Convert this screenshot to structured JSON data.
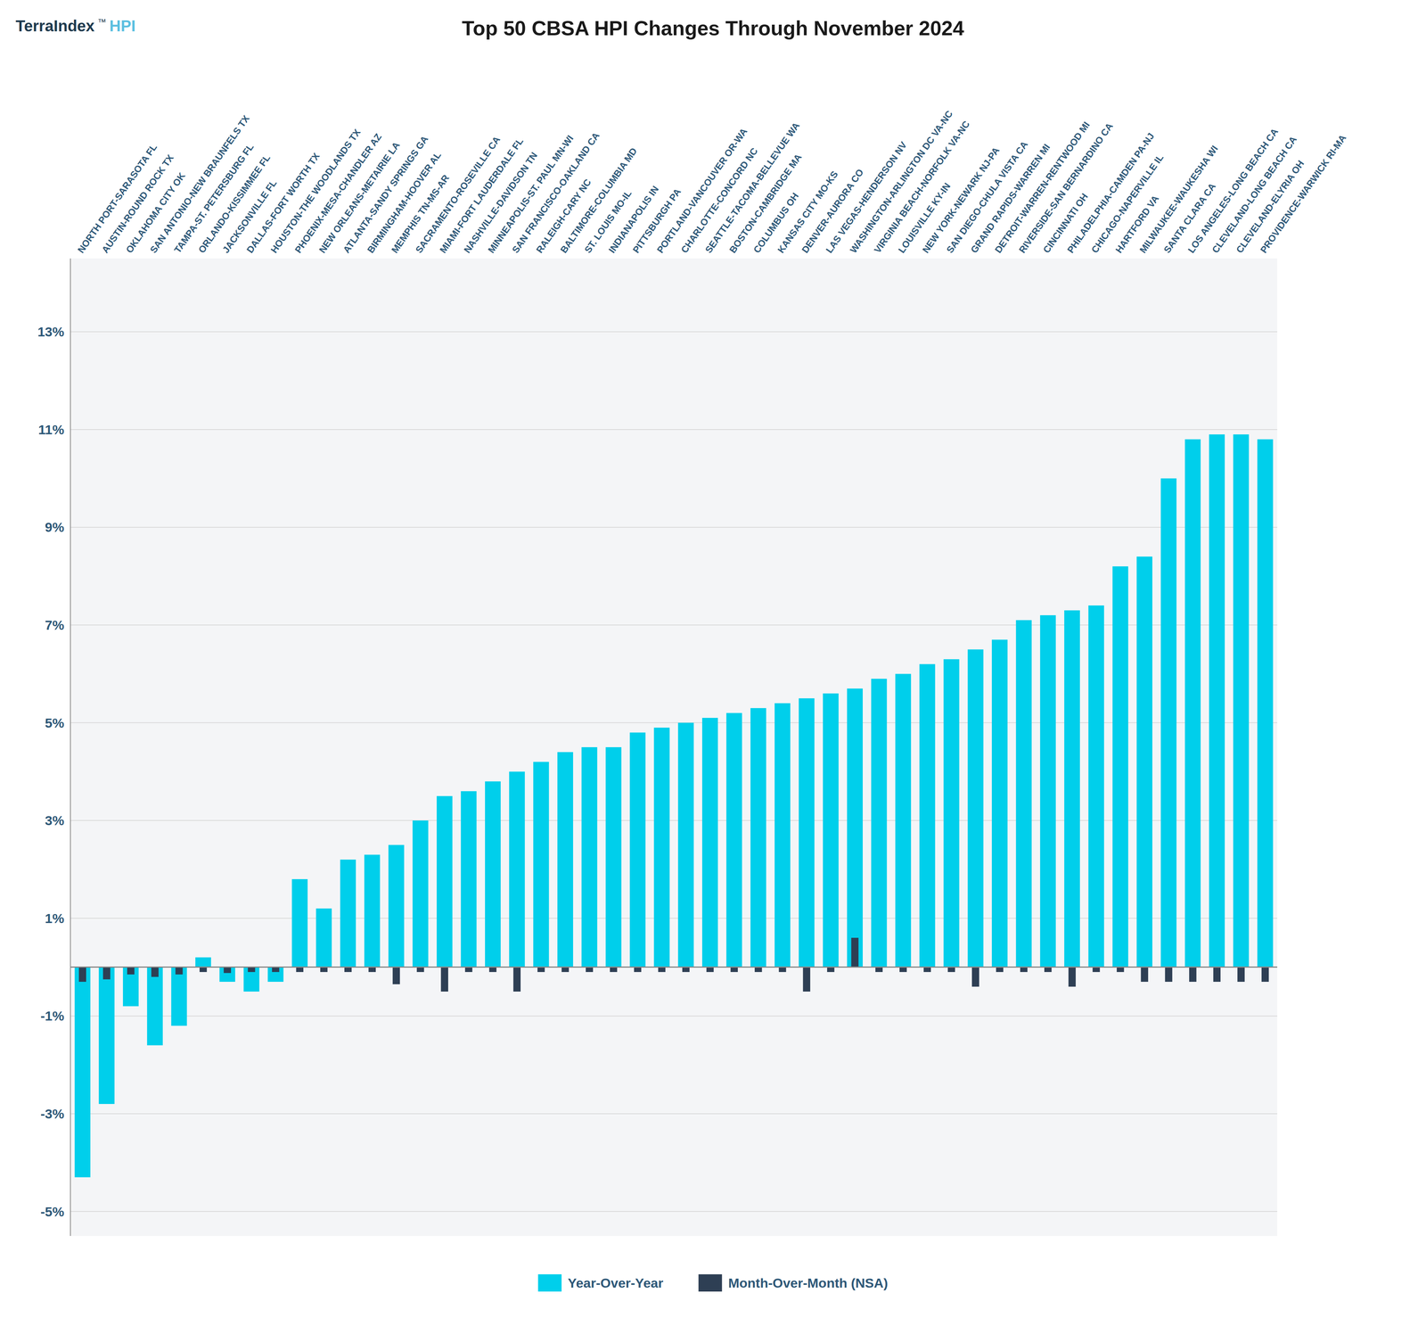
{
  "chart_data": {
    "type": "bar",
    "title": "Top 50 CBSA HPI Changes Through November 2024",
    "annotations": [
      "TerraIndex",
      "™",
      "HPI"
    ],
    "categories": [
      "NORTH PORT-SARASOTA FL",
      "AUSTIN-ROUND ROCK TX",
      "OKLAHOMA CITY OK",
      "SAN ANTONIO-NEW BRAUNFELS TX",
      "TAMPA-ST. PETERSBURG FL",
      "ORLANDO-KISSIMMEE FL",
      "JACKSONVILLE FL",
      "DALLAS-FORT WORTH TX",
      "HOUSTON-THE WOODLANDS TX",
      "PHOENIX-MESA-CHANDLER AZ",
      "NEW ORLEANS-METAIRIE LA",
      "ATLANTA-SANDY SPRINGS GA",
      "BIRMINGHAM-HOOVER AL",
      "MEMPHIS TN-MS-AR",
      "SACRAMENTO-ROSEVILLE CA",
      "MIAMI-FORT LAUDERDALE FL",
      "NASHVILLE-DAVIDSON TN",
      "MINNEAPOLIS-ST. PAUL MN-WI",
      "SAN FRANCISCO-OAKLAND CA",
      "RALEIGH-CARY NC",
      "BALTIMORE-COLUMBIA MD",
      "ST. LOUIS MO-IL",
      "INDIANAPOLIS IN",
      "PITTSBURGH PA",
      "PORTLAND-VANCOUVER OR-WA",
      "CHARLOTTE-CONCORD NC",
      "SEATTLE-TACOMA-BELLEVUE WA",
      "BOSTON-CAMBRIDGE MA",
      "COLUMBUS OH",
      "KANSAS CITY MO-KS",
      "DENVER-AURORA CO",
      "LAS VEGAS-HENDERSON NV",
      "WASHINGTON-ARLINGTON DC VA-NC",
      "VIRGINIA BEACH-NORFOLK VA-NC",
      "LOUISVILLE KY-IN",
      "NEW YORK-NEWARK NJ-PA",
      "SAN DIEGO-CHULA VISTA CA",
      "GRAND RAPIDS-WARREN MI",
      "DETROIT-WARREN-RENTWOOD MI",
      "RIVERSIDE-SAN BERNARDINO CA",
      "CINCINNATI OH",
      "PHILADELPHIA-CAMDEN PA-NJ",
      "CHICAGO-NAPERVILLE IL",
      "HARTFORD VA",
      "MILWAUKEE-WAUKESHA WI",
      "SANTA CLARA CA",
      "LOS ANGELES-LONG BEACH CA",
      "CLEVELAND-LONG BEACH CA",
      "CLEVELAND-ELYRIA OH",
      "PROVIDENCE-WARWICK RI-MA"
    ],
    "series": [
      {
        "name": "Year-Over-Year",
        "color": "#00CFEB",
        "values": [
          -4.3,
          -2.8,
          -0.8,
          -1.6,
          -1.2,
          0.2,
          -0.3,
          -0.5,
          -0.3,
          1.8,
          1.2,
          2.2,
          2.3,
          2.5,
          3.0,
          3.5,
          3.6,
          3.8,
          4.0,
          4.2,
          4.4,
          4.5,
          4.5,
          4.8,
          4.9,
          5.0,
          5.1,
          5.2,
          5.3,
          5.4,
          5.5,
          5.6,
          5.7,
          5.9,
          6.0,
          6.2,
          6.3,
          6.5,
          6.7,
          7.1,
          7.2,
          7.3,
          7.4,
          8.2,
          8.4,
          10.0,
          10.8,
          10.9,
          10.9,
          10.8
        ]
      },
      {
        "name": "Month-Over-Month (NSA)",
        "color": "#2E3F54",
        "values": [
          -0.3,
          -0.25,
          -0.15,
          -0.2,
          -0.15,
          -0.1,
          -0.12,
          -0.1,
          -0.1,
          -0.1,
          -0.1,
          -0.1,
          -0.1,
          -0.35,
          -0.1,
          -0.5,
          -0.1,
          -0.1,
          -0.5,
          -0.1,
          -0.1,
          -0.1,
          -0.1,
          -0.1,
          -0.1,
          -0.1,
          -0.1,
          -0.1,
          -0.1,
          -0.1,
          -0.5,
          -0.1,
          0.6,
          -0.1,
          -0.1,
          -0.1,
          -0.1,
          -0.4,
          -0.1,
          -0.1,
          -0.1,
          -0.4,
          -0.1,
          -0.1,
          -0.3,
          -0.3,
          -0.3,
          -0.3,
          -0.3,
          -0.3
        ]
      }
    ],
    "ylim": [
      -5.5,
      14.5
    ],
    "yticks": [
      {
        "value": -5,
        "label": "-5%"
      },
      {
        "value": -3,
        "label": "-3%"
      },
      {
        "value": -1,
        "label": "-1%"
      },
      {
        "value": 1,
        "label": "1%"
      },
      {
        "value": 3,
        "label": "3%"
      },
      {
        "value": 5,
        "label": "5%"
      },
      {
        "value": 7,
        "label": "7%"
      },
      {
        "value": 9,
        "label": "9%"
      },
      {
        "value": 11,
        "label": "11%"
      },
      {
        "value": 13,
        "label": "13%"
      }
    ],
    "grid": true,
    "legend": "bottom"
  }
}
